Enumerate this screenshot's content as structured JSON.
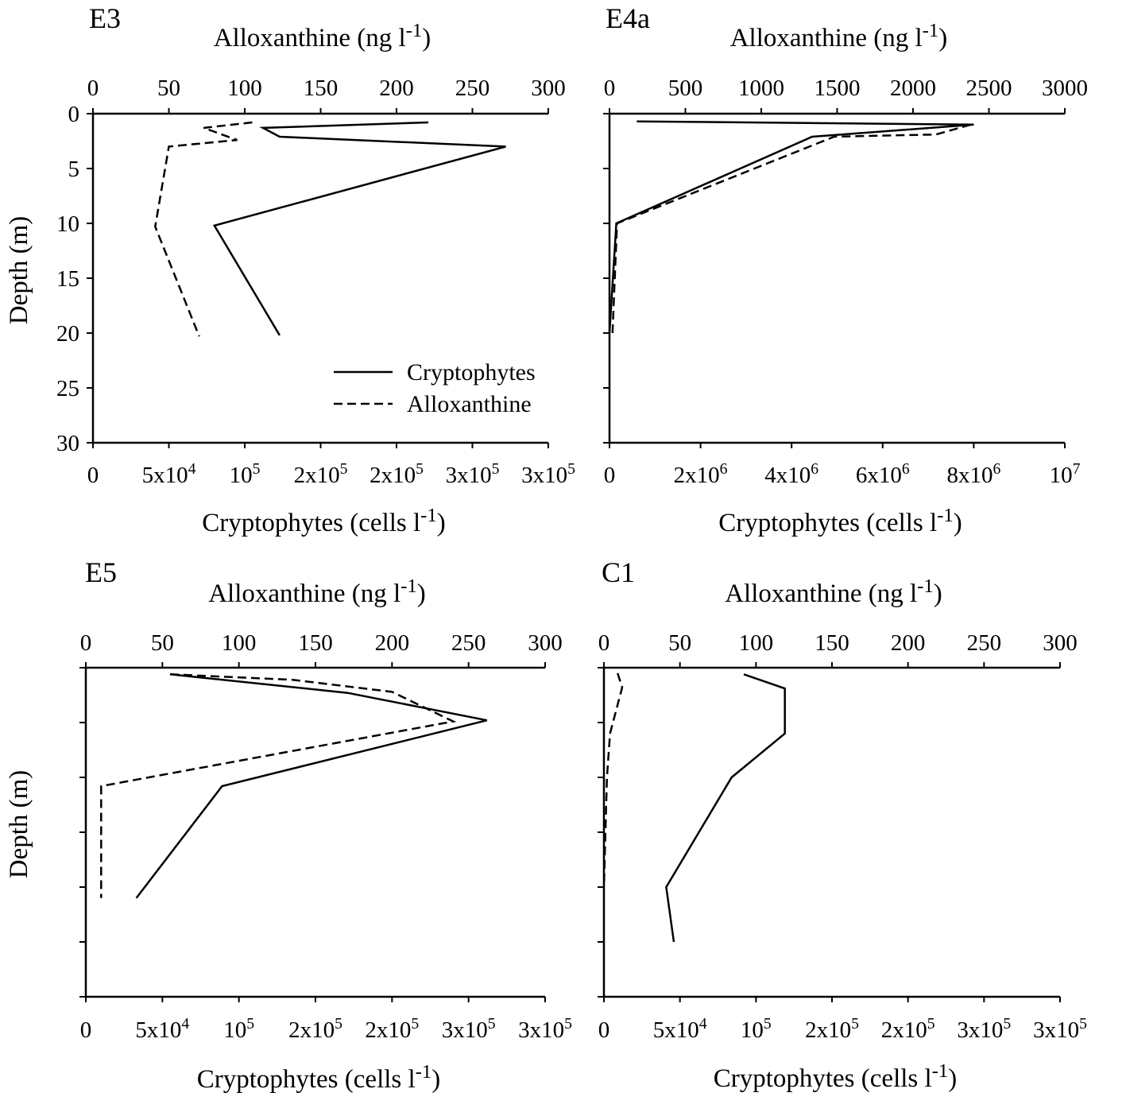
{
  "chart_data": [
    {
      "type": "line",
      "panel_label": "E3",
      "top_axis_label": "Alloxanthine (ng l",
      "top_axis_sup": "-1",
      "top_axis_close": ")",
      "top_ticks": [
        "0",
        "50",
        "100",
        "150",
        "200",
        "250",
        "300"
      ],
      "top_range": [
        0,
        300
      ],
      "bottom_axis_label": "Cryptophytes (cells l",
      "bottom_axis_sup": "-1",
      "bottom_axis_close": ")",
      "bottom_ticks": [
        "0",
        "5x10",
        "10",
        "2x10",
        "2x10",
        "3x10",
        "3x10"
      ],
      "bottom_ticks_exp": [
        "",
        "4",
        "5",
        "5",
        "5",
        "5",
        "5"
      ],
      "bottom_range": [
        0,
        300000
      ],
      "y_label": "Depth (m)",
      "y_ticks": [
        "0",
        "5",
        "10",
        "15",
        "20",
        "25",
        "30"
      ],
      "y_range": [
        0,
        30
      ],
      "y_inverted": true,
      "show_y_tick_labels": true,
      "legend": {
        "placement": "bottom-right",
        "entries": [
          {
            "name": "Cryptophytes",
            "style": "solid"
          },
          {
            "name": "Alloxanthine",
            "style": "dashed"
          }
        ]
      },
      "series": [
        {
          "name": "Cryptophytes",
          "style": "solid",
          "axis": "bottom",
          "x": [
            221000,
            112000,
            123000,
            272000,
            80000,
            123000
          ],
          "y": [
            0.8,
            1.3,
            2.1,
            3.0,
            10.2,
            20.2
          ]
        },
        {
          "name": "Alloxanthine",
          "style": "dashed",
          "axis": "top",
          "x": [
            105,
            73,
            95,
            50,
            41,
            70
          ],
          "y": [
            0.8,
            1.3,
            2.4,
            3.0,
            10.3,
            20.3
          ]
        }
      ]
    },
    {
      "type": "line",
      "panel_label": "E4a",
      "top_axis_label": "Alloxanthine (ng l",
      "top_axis_sup": "-1",
      "top_axis_close": ")",
      "top_ticks": [
        "0",
        "500",
        "1000",
        "1500",
        "2000",
        "2500",
        "3000"
      ],
      "top_range": [
        0,
        3000
      ],
      "bottom_axis_label": "Cryptophytes (cells l",
      "bottom_axis_sup": "-1",
      "bottom_axis_close": ")",
      "bottom_ticks": [
        "0",
        "2x10",
        "4x10",
        "6x10",
        "8x10",
        "10"
      ],
      "bottom_ticks_exp": [
        "",
        "6",
        "6",
        "6",
        "6",
        "7"
      ],
      "bottom_range": [
        0,
        10000000
      ],
      "y_label": "",
      "y_ticks": [
        "0",
        "5",
        "10",
        "15",
        "20",
        "25",
        "30"
      ],
      "y_range": [
        0,
        30
      ],
      "y_inverted": true,
      "show_y_tick_labels": false,
      "series": [
        {
          "name": "Cryptophytes",
          "style": "solid",
          "axis": "bottom",
          "x": [
            600000,
            8000000,
            4450000,
            150000,
            0
          ],
          "y": [
            0.7,
            1.0,
            2.1,
            10.0,
            20.0
          ]
        },
        {
          "name": "Alloxanthine",
          "style": "dashed",
          "axis": "top",
          "x": [
            2380,
            2150,
            1480,
            50,
            20
          ],
          "y": [
            1.0,
            1.9,
            2.1,
            10.0,
            20.0
          ]
        }
      ]
    },
    {
      "type": "line",
      "panel_label": "E5",
      "top_axis_label": "Alloxanthine (ng l",
      "top_axis_sup": "-1",
      "top_axis_close": ")",
      "top_ticks": [
        "0",
        "50",
        "100",
        "150",
        "200",
        "250",
        "300"
      ],
      "top_range": [
        0,
        300
      ],
      "bottom_axis_label": "Cryptophytes  (cells l",
      "bottom_axis_sup": "-1",
      "bottom_axis_close": ")",
      "bottom_ticks": [
        "0",
        "5x10",
        "10",
        "2x10",
        "2x10",
        "3x10",
        "3x10"
      ],
      "bottom_ticks_exp": [
        "",
        "4",
        "5",
        "5",
        "5",
        "5",
        "5"
      ],
      "bottom_range": [
        0,
        300000
      ],
      "y_label": "Depth (m)",
      "y_ticks": [
        "0",
        "5",
        "10",
        "15",
        "20",
        "25",
        "30"
      ],
      "y_range": [
        0,
        30
      ],
      "y_inverted": true,
      "show_y_tick_labels": false,
      "series": [
        {
          "name": "Cryptophytes",
          "style": "solid",
          "axis": "bottom",
          "x": [
            55000,
            171000,
            262000,
            89000,
            33000
          ],
          "y": [
            0.6,
            2.3,
            4.8,
            10.8,
            21.0
          ]
        },
        {
          "name": "Alloxanthine",
          "style": "dashed",
          "axis": "top",
          "x": [
            55,
            135,
            200,
            240,
            10,
            10
          ],
          "y": [
            0.6,
            1.1,
            2.2,
            4.9,
            10.8,
            21.0
          ]
        }
      ]
    },
    {
      "type": "line",
      "panel_label": "C1",
      "top_axis_label": "Alloxanthine (ng l",
      "top_axis_sup": "-1",
      "top_axis_close": ")",
      "top_ticks": [
        "0",
        "50",
        "100",
        "150",
        "200",
        "250",
        "300"
      ],
      "top_range": [
        0,
        300
      ],
      "bottom_axis_label": "Cryptophytes (cells l",
      "bottom_axis_sup": "-1",
      "bottom_axis_close": ")",
      "bottom_ticks": [
        "0",
        "5x10",
        "10",
        "2x10",
        "2x10",
        "3x10",
        "3x10"
      ],
      "bottom_ticks_exp": [
        "",
        "4",
        "5",
        "5",
        "5",
        "5",
        "5"
      ],
      "bottom_range": [
        0,
        300000
      ],
      "y_label": "",
      "y_ticks": [
        "0",
        "5",
        "10",
        "15",
        "20",
        "25",
        "30"
      ],
      "y_range": [
        0,
        30
      ],
      "y_inverted": true,
      "show_y_tick_labels": false,
      "series": [
        {
          "name": "Cryptophytes",
          "style": "solid",
          "axis": "bottom",
          "x": [
            92000,
            119000,
            119000,
            84000,
            41000,
            46000
          ],
          "y": [
            0.6,
            1.9,
            6.0,
            10.0,
            20.0,
            25.0
          ]
        },
        {
          "name": "Alloxanthine",
          "style": "dashed",
          "axis": "top",
          "x": [
            9,
            12,
            4,
            2,
            0
          ],
          "y": [
            0.5,
            1.8,
            6.0,
            10.0,
            20.0
          ]
        }
      ]
    }
  ]
}
